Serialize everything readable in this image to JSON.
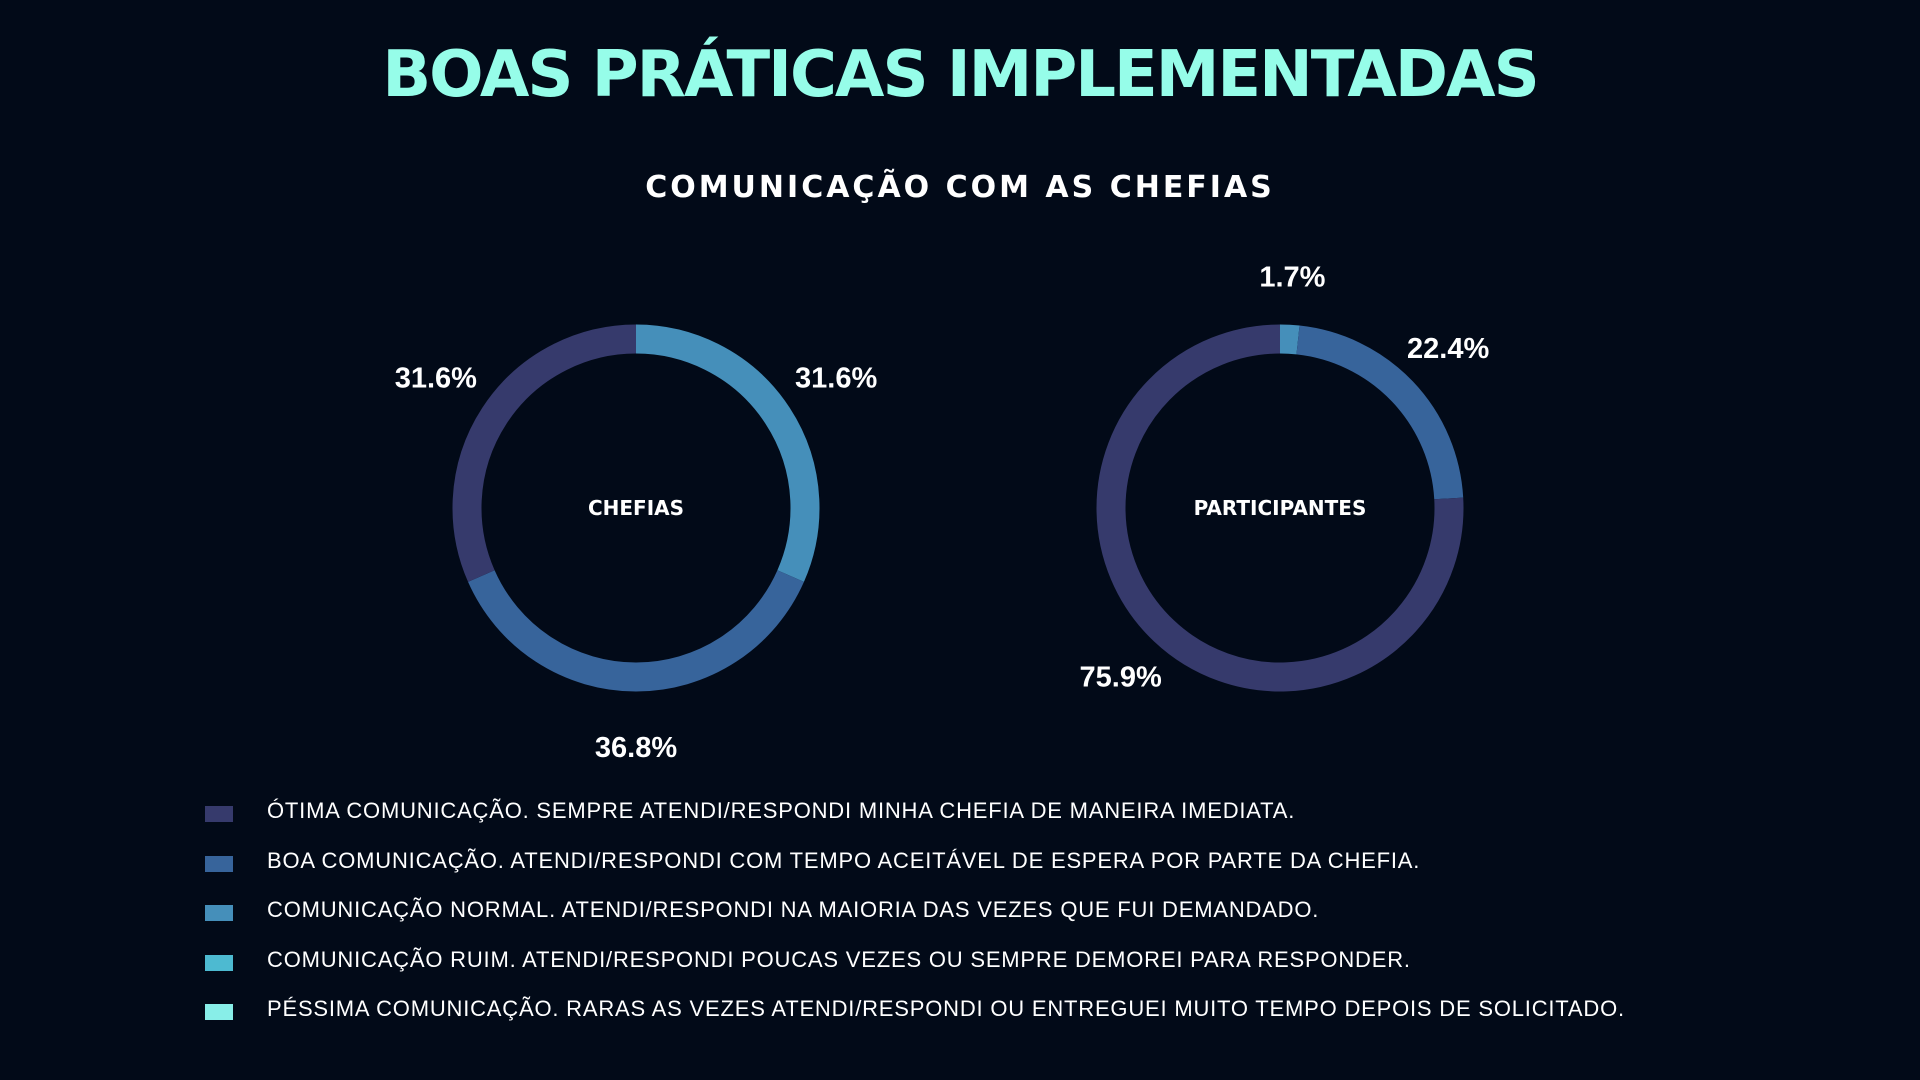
{
  "page": {
    "title": "BOAS PRÁTICAS IMPLEMENTADAS",
    "subtitle": "COMUNICAÇÃO COM AS CHEFIAS"
  },
  "colors": {
    "background": "#020a18",
    "title": "#96fde9",
    "otima": "#363a6c",
    "boa": "#37649b",
    "normal": "#458fba",
    "ruim": "#4dbad1",
    "pessima": "#88eee8"
  },
  "chart_data": [
    {
      "type": "pie",
      "center_label": "CHEFIAS",
      "categories": [
        "ÓTIMA",
        "BOA",
        "NORMAL",
        "RUIM",
        "PÉSSIMA"
      ],
      "values": [
        31.6,
        36.8,
        31.6,
        0,
        0
      ],
      "labels": [
        "31.6%",
        "36.8%",
        "31.6%",
        "",
        ""
      ],
      "donut": true
    },
    {
      "type": "pie",
      "center_label": "PARTICIPANTES",
      "categories": [
        "ÓTIMA",
        "BOA",
        "NORMAL",
        "RUIM",
        "PÉSSIMA"
      ],
      "values": [
        75.9,
        22.4,
        1.7,
        0,
        0
      ],
      "labels": [
        "75.9%",
        "22.4%",
        "1.7%",
        "",
        ""
      ],
      "donut": true
    }
  ],
  "legend": {
    "placement": "bottom",
    "items": [
      {
        "label": "ÓTIMA COMUNICAÇÃO. SEMPRE ATENDI/RESPONDI MINHA CHEFIA DE MANEIRA IMEDIATA.",
        "color": "#363a6c"
      },
      {
        "label": "BOA COMUNICAÇÃO. ATENDI/RESPONDI COM TEMPO ACEITÁVEL DE ESPERA POR PARTE DA CHEFIA.",
        "color": "#37649b"
      },
      {
        "label": "COMUNICAÇÃO NORMAL. ATENDI/RESPONDI NA MAIORIA DAS VEZES QUE FUI DEMANDADO.",
        "color": "#458fba"
      },
      {
        "label": "COMUNICAÇÃO RUIM. ATENDI/RESPONDI POUCAS VEZES OU SEMPRE DEMOREI PARA RESPONDER.",
        "color": "#4dbad1"
      },
      {
        "label": "PÉSSIMA COMUNICAÇÃO. RARAS AS VEZES ATENDI/RESPONDI OU ENTREGUEI MUITO TEMPO DEPOIS DE SOLICITADO.",
        "color": "#88eee8"
      }
    ]
  }
}
